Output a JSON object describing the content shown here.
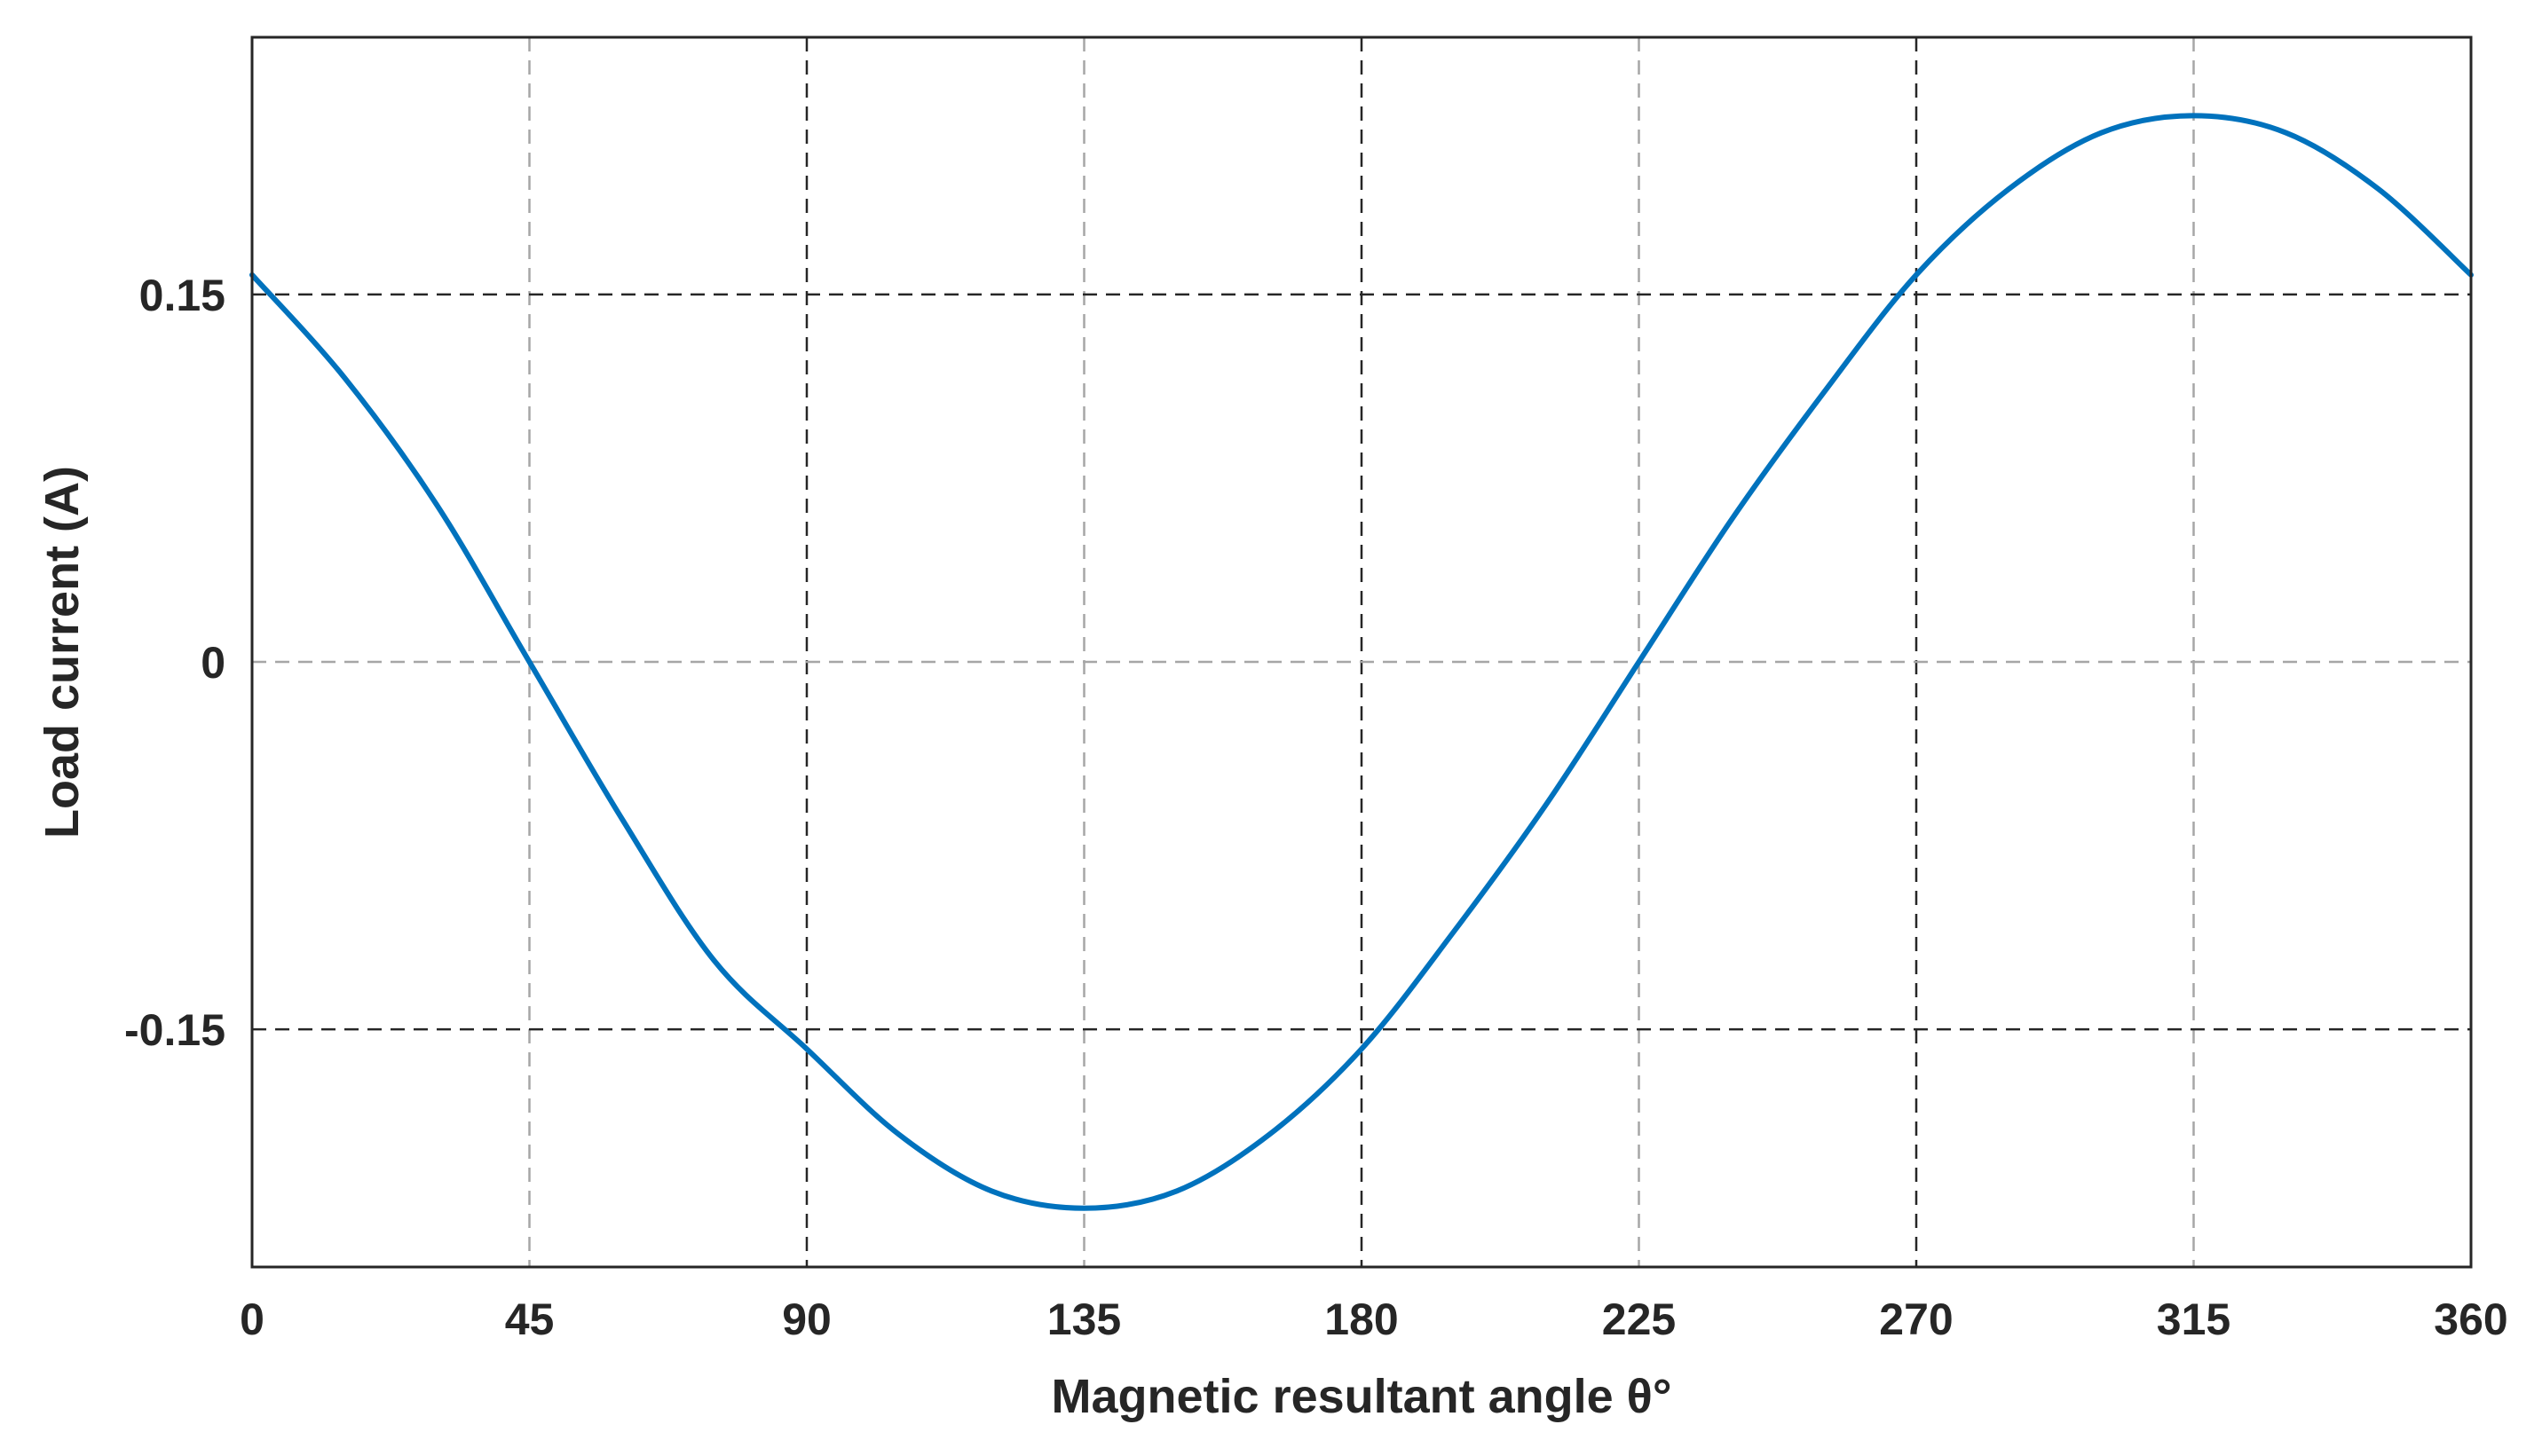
{
  "chart_data": {
    "type": "line",
    "title": "",
    "xlabel": "Magnetic resultant angle θ°",
    "ylabel": "Load current (A)",
    "xlim": [
      0,
      360
    ],
    "ylim": [
      -0.247,
      0.255
    ],
    "grid": true,
    "legend": "none",
    "x_ticks": [
      0,
      45,
      90,
      135,
      180,
      225,
      270,
      315,
      360
    ],
    "x_tick_labels": [
      "0",
      "45",
      "90",
      "135",
      "180",
      "225",
      "270",
      "315",
      "360"
    ],
    "y_ticks": [
      -0.15,
      0,
      0.15
    ],
    "y_tick_labels": [
      "-0.15",
      "0",
      "0.15"
    ],
    "colors": {
      "line": "#0072BD",
      "grid_dark": "#262626",
      "grid_light": "#a6a6a6",
      "axes": "#262626"
    },
    "series": [
      {
        "x": [
          0,
          15,
          30,
          45,
          60,
          75,
          90,
          105,
          120,
          135,
          150,
          165,
          180,
          195,
          210,
          225,
          240,
          255,
          270,
          285,
          300,
          315,
          330,
          345,
          360
        ],
        "y": [
          0.158,
          0.116,
          0.064,
          0.0,
          -0.064,
          -0.122,
          -0.158,
          -0.193,
          -0.216,
          -0.223,
          -0.216,
          -0.193,
          -0.158,
          -0.11,
          -0.058,
          0.0,
          0.058,
          0.11,
          0.158,
          0.193,
          0.216,
          0.223,
          0.216,
          0.193,
          0.158
        ]
      }
    ]
  }
}
